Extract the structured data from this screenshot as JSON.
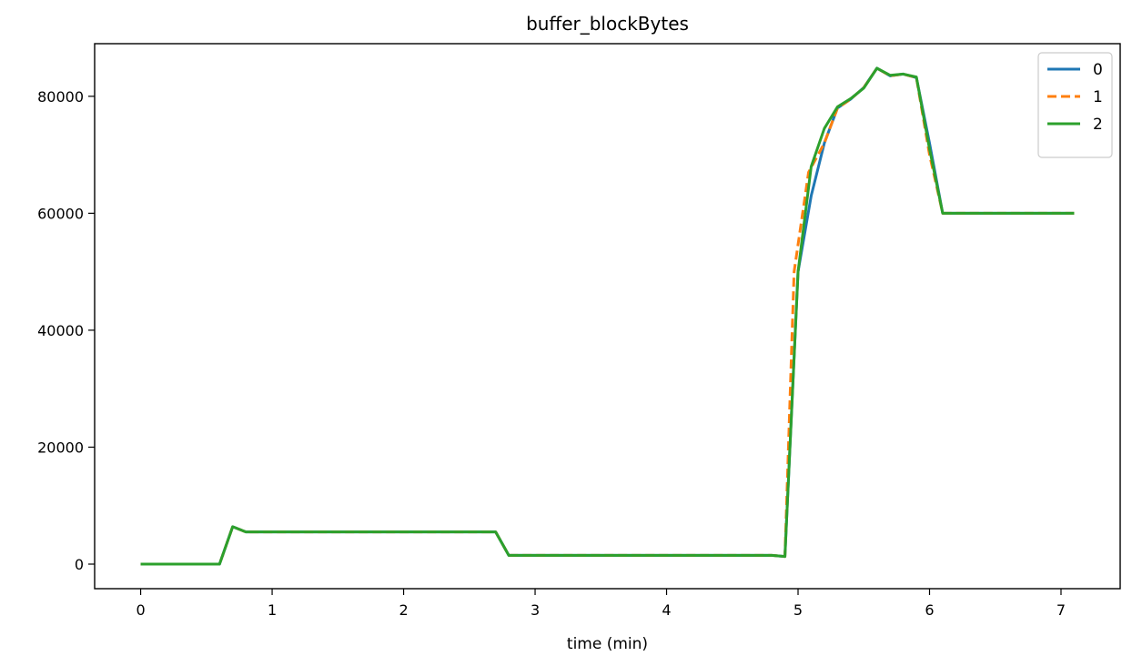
{
  "chart_data": {
    "type": "line",
    "title": "buffer_blockBytes",
    "xlabel": "time (min)",
    "ylabel": "",
    "xlim": [
      -0.35,
      7.45
    ],
    "ylim": [
      -4200,
      89000
    ],
    "xticks": [
      0,
      1,
      2,
      3,
      4,
      5,
      6,
      7
    ],
    "yticks": [
      0,
      20000,
      40000,
      60000,
      80000
    ],
    "grid": false,
    "legend_position": "top-right",
    "series": [
      {
        "name": "0",
        "color": "#1f77b4",
        "dash": "solid",
        "points": [
          [
            0,
            0
          ],
          [
            0.6,
            0
          ],
          [
            0.7,
            6400
          ],
          [
            0.8,
            5500
          ],
          [
            1.5,
            5500
          ],
          [
            2.0,
            5500
          ],
          [
            2.7,
            5500
          ],
          [
            2.8,
            1500
          ],
          [
            3.5,
            1500
          ],
          [
            4.0,
            1500
          ],
          [
            4.8,
            1500
          ],
          [
            4.9,
            1300
          ],
          [
            5.0,
            50000
          ],
          [
            5.1,
            63000
          ],
          [
            5.2,
            72000
          ],
          [
            5.3,
            78000
          ],
          [
            5.4,
            79500
          ],
          [
            5.5,
            81500
          ],
          [
            5.6,
            84800
          ],
          [
            5.7,
            83500
          ],
          [
            5.8,
            83800
          ],
          [
            5.9,
            83200
          ],
          [
            6.0,
            72000
          ],
          [
            6.1,
            60000
          ],
          [
            6.5,
            60000
          ],
          [
            7.1,
            60000
          ]
        ]
      },
      {
        "name": "1",
        "color": "#ff7f0e",
        "dash": "dashed",
        "points": [
          [
            0,
            0
          ],
          [
            0.6,
            0
          ],
          [
            0.7,
            6400
          ],
          [
            0.8,
            5500
          ],
          [
            1.5,
            5500
          ],
          [
            2.0,
            5500
          ],
          [
            2.7,
            5500
          ],
          [
            2.8,
            1500
          ],
          [
            3.5,
            1500
          ],
          [
            4.0,
            1500
          ],
          [
            4.8,
            1500
          ],
          [
            4.9,
            1300
          ],
          [
            4.97,
            50000
          ],
          [
            5.08,
            67000
          ],
          [
            5.2,
            72000
          ],
          [
            5.3,
            78000
          ],
          [
            5.4,
            79500
          ],
          [
            5.5,
            81500
          ],
          [
            5.6,
            84800
          ],
          [
            5.7,
            83500
          ],
          [
            5.8,
            83800
          ],
          [
            5.9,
            83200
          ],
          [
            6.0,
            70000
          ],
          [
            6.1,
            60000
          ],
          [
            6.5,
            60000
          ],
          [
            7.1,
            60000
          ]
        ]
      },
      {
        "name": "2",
        "color": "#2ca02c",
        "dash": "solid",
        "points": [
          [
            0,
            0
          ],
          [
            0.6,
            0
          ],
          [
            0.7,
            6400
          ],
          [
            0.8,
            5500
          ],
          [
            1.5,
            5500
          ],
          [
            2.0,
            5500
          ],
          [
            2.7,
            5500
          ],
          [
            2.8,
            1500
          ],
          [
            3.5,
            1500
          ],
          [
            4.0,
            1500
          ],
          [
            4.8,
            1500
          ],
          [
            4.9,
            1300
          ],
          [
            5.0,
            50000
          ],
          [
            5.1,
            68000
          ],
          [
            5.2,
            74500
          ],
          [
            5.3,
            78200
          ],
          [
            5.4,
            79600
          ],
          [
            5.5,
            81400
          ],
          [
            5.6,
            84800
          ],
          [
            5.7,
            83600
          ],
          [
            5.8,
            83800
          ],
          [
            5.9,
            83300
          ],
          [
            6.0,
            71000
          ],
          [
            6.1,
            60000
          ],
          [
            6.5,
            60000
          ],
          [
            7.1,
            60000
          ]
        ]
      }
    ]
  }
}
